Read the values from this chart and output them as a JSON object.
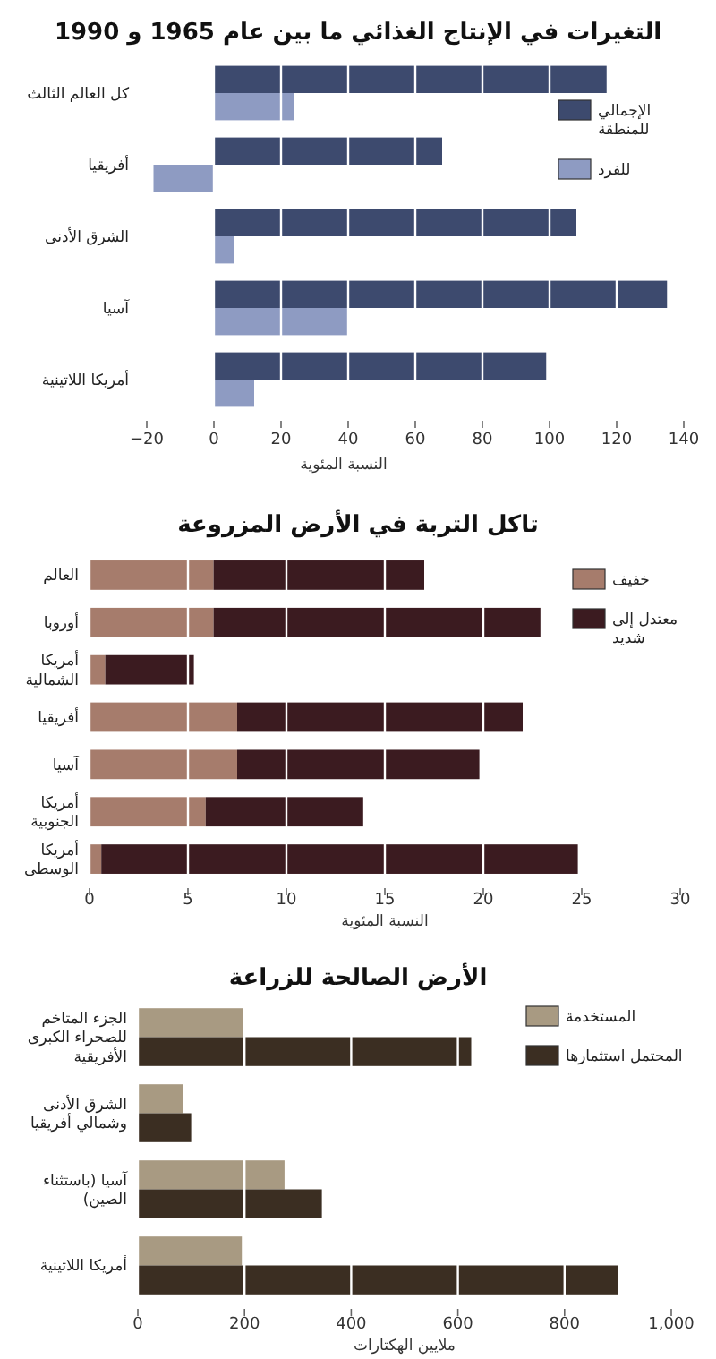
{
  "chart_data": [
    {
      "type": "bar",
      "orientation": "horizontal",
      "title": "التغيرات في الإنتاج الغذائي ما بين عام 1965 و 1990",
      "xlabel": "النسبة المئوية",
      "categories": [
        "كل العالم الثالث",
        "أفريقيا",
        "الشرق الأدنى",
        "آسيا",
        "أمريكا اللاتينية"
      ],
      "series": [
        {
          "name": "الإجمالي للمنطقة",
          "color": "#3d4a6e",
          "values": [
            117,
            68,
            108,
            135,
            99
          ]
        },
        {
          "name": "للفرد",
          "color": "#8e9bc2",
          "values": [
            24,
            -18,
            6,
            40,
            12
          ]
        }
      ],
      "xlim": [
        -20,
        140
      ],
      "xticks": [
        {
          "value": -20,
          "label": "−20"
        },
        0,
        20,
        40,
        60,
        80,
        100,
        120,
        140
      ],
      "grid": "x",
      "legend": "top right"
    },
    {
      "type": "bar",
      "orientation": "horizontal",
      "stacked": true,
      "title": "تاكل التربة في الأرض المزروعة",
      "xlabel": "النسبة المئوية",
      "categories": [
        "العالم",
        "أوروبا",
        "أمريكا الشمالية",
        "أفريقيا",
        "آسيا",
        "أمريكا الجنوبية",
        "أمريكا الوسطى"
      ],
      "series": [
        {
          "name": "خفيف",
          "color": "#a67c6c",
          "values": [
            6.3,
            6.3,
            0.8,
            7.5,
            7.5,
            5.9,
            0.6
          ]
        },
        {
          "name": "معتدل إلى شديد",
          "color": "#3b1b20",
          "values": [
            10.7,
            16.6,
            4.5,
            14.5,
            12.3,
            8.0,
            24.2
          ]
        }
      ],
      "xlim": [
        0,
        30
      ],
      "xticks": [
        0,
        5,
        10,
        15,
        20,
        25,
        30
      ],
      "grid": "x",
      "legend": "top right"
    },
    {
      "type": "bar",
      "orientation": "horizontal",
      "title": "الأرض الصالحة للزراعة",
      "xlabel": "ملايين الهكتارات",
      "categories": [
        "الجزء المتاخم للصحراء الكبرى الأفريقية",
        "الشرق الأدنى وشمالي أفريقيا",
        "آسيا (باستثناء الصين)",
        "أمريكا اللاتينية"
      ],
      "series": [
        {
          "name": "المستخدمة",
          "color": "#a89a82",
          "values": [
            200,
            85,
            275,
            195
          ]
        },
        {
          "name": "المحتمل استثمارها",
          "color": "#3b2e22",
          "values": [
            625,
            100,
            345,
            900
          ]
        }
      ],
      "xlim": [
        0,
        1000
      ],
      "xticks": [
        0,
        200,
        400,
        600,
        800,
        {
          "value": 1000,
          "label": "1,000"
        }
      ],
      "grid": "x",
      "legend": "top right"
    }
  ]
}
